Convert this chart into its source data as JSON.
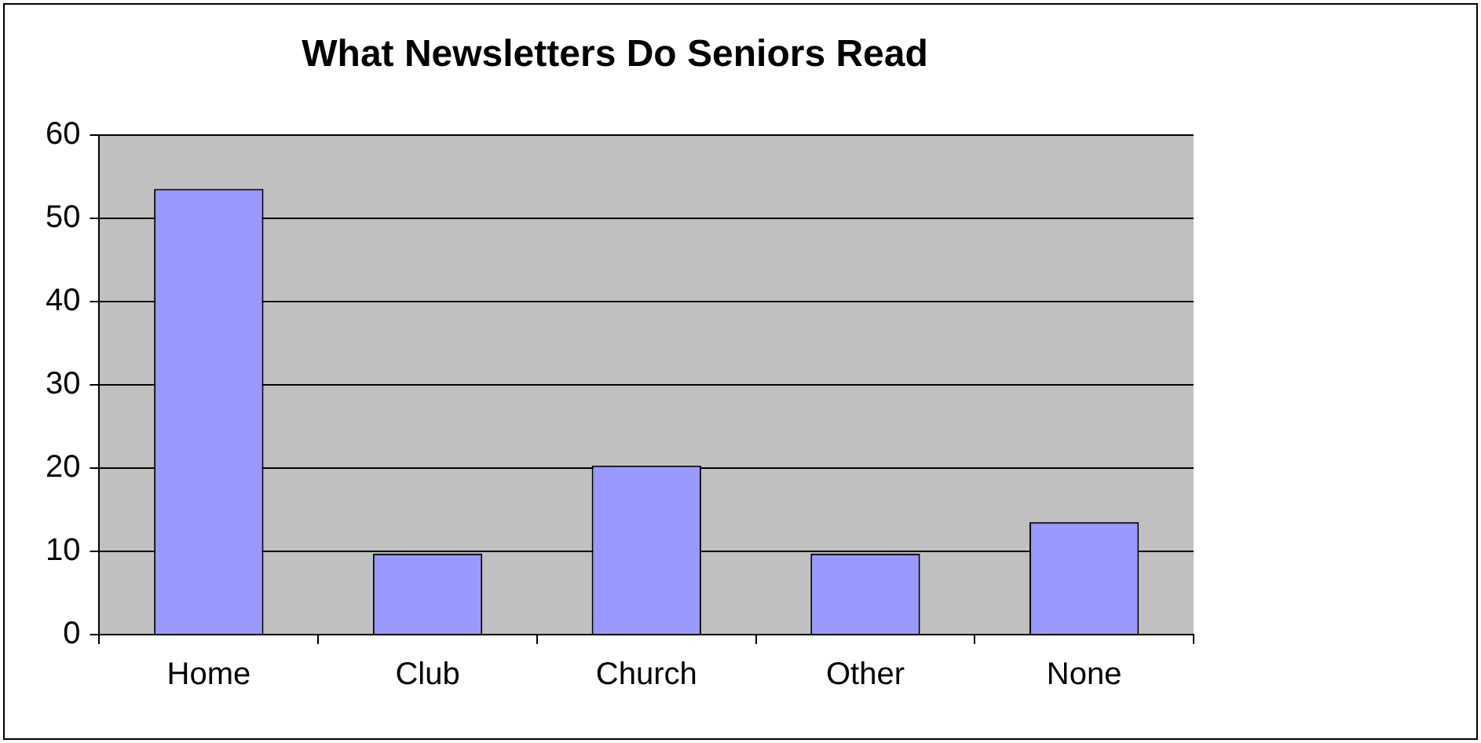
{
  "chart_data": {
    "type": "bar",
    "title": "What Newsletters Do Seniors Read",
    "categories": [
      "Home",
      "Club",
      "Church",
      "Other",
      "None"
    ],
    "values": [
      53.5,
      9.7,
      20.3,
      9.7,
      13.5
    ],
    "color": "#9999ff",
    "ylim": [
      0,
      60
    ],
    "yticks": [
      0,
      10,
      20,
      30,
      40,
      50,
      60
    ],
    "grid": "y",
    "legend": false
  }
}
